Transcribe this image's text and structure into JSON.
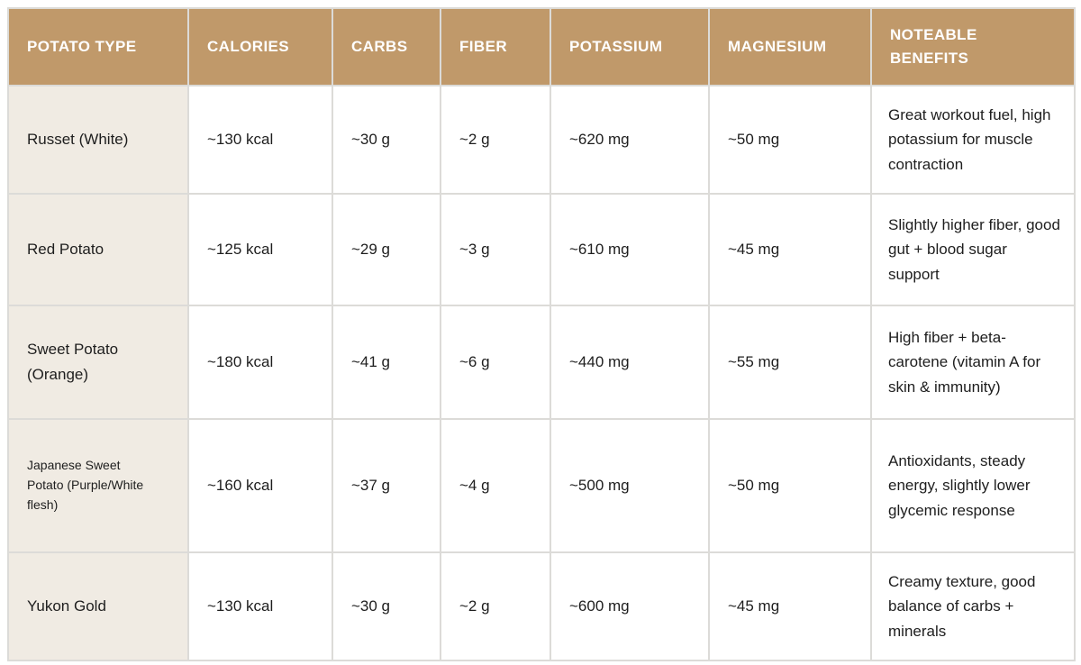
{
  "table": {
    "columns": [
      "POTATO TYPE",
      "CALORIES",
      "CARBS",
      "FIBER",
      "POTASSIUM",
      "MAGNESIUM",
      "NOTEABLE BENEFITS"
    ],
    "rows": [
      {
        "potato_type": "Russet (White)",
        "calories": "~130 kcal",
        "carbs": "~30 g",
        "fiber": "~2 g",
        "potassium": "~620 mg",
        "magnesium": "~50 mg",
        "benefits": "Great workout fuel, high potassium for muscle contraction"
      },
      {
        "potato_type": "Red Potato",
        "calories": "~125 kcal",
        "carbs": "~29 g",
        "fiber": "~3 g",
        "potassium": "~610 mg",
        "magnesium": "~45 mg",
        "benefits": "Slightly higher fiber, good gut + blood sugar support"
      },
      {
        "potato_type": "Sweet Potato (Orange)",
        "calories": "~180 kcal",
        "carbs": "~41 g",
        "fiber": "~6 g",
        "potassium": "~440 mg",
        "magnesium": "~55 mg",
        "benefits": "High fiber + beta-carotene (vitamin A for skin & immunity)"
      },
      {
        "potato_type": "Japanese Sweet Potato (Purple/White flesh)",
        "calories": "~160 kcal",
        "carbs": "~37 g",
        "fiber": "~4 g",
        "potassium": "~500 mg",
        "magnesium": "~50 mg",
        "benefits": "Antioxidants, steady energy, slightly lower glycemic response"
      },
      {
        "potato_type": "Yukon Gold",
        "calories": "~130 kcal",
        "carbs": "~30 g",
        "fiber": "~2 g",
        "potassium": "~600 mg",
        "magnesium": "~45 mg",
        "benefits": "Creamy texture, good balance of carbs + minerals"
      }
    ]
  },
  "colors": {
    "header_bg": "#c0996a",
    "header_text": "#ffffff",
    "row_label_bg": "#f0ebe3",
    "cell_bg": "#ffffff",
    "border": "#dcdbd8",
    "body_text": "#1e1e1e"
  }
}
